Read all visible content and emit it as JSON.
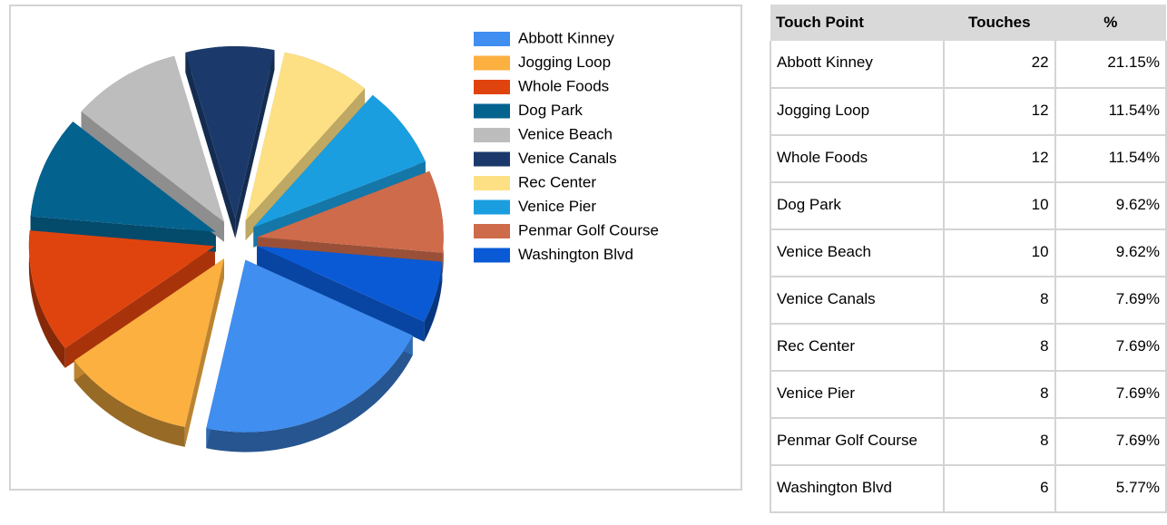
{
  "chart_data": {
    "type": "pie",
    "categories": [
      "Abbott Kinney",
      "Jogging Loop",
      "Whole Foods",
      "Dog Park",
      "Venice Beach",
      "Venice Canals",
      "Rec Center",
      "Venice Pier",
      "Penmar Golf Course",
      "Washington Blvd"
    ],
    "values": [
      22,
      12,
      12,
      10,
      10,
      8,
      8,
      8,
      8,
      6
    ],
    "colors": [
      "#3f8ef0",
      "#fbb040",
      "#e0440e",
      "#04628f",
      "#bdbdbd",
      "#1b3a6b",
      "#fde084",
      "#1a9ee0",
      "#cd6b4b",
      "#0a5ad6"
    ],
    "legend": "right"
  },
  "table": {
    "header": [
      "Touch Point",
      "Touches",
      "%"
    ],
    "rows": [
      [
        "Abbott Kinney",
        "22",
        "21.15%"
      ],
      [
        "Jogging Loop",
        "12",
        "11.54%"
      ],
      [
        "Whole Foods",
        "12",
        "11.54%"
      ],
      [
        "Dog Park",
        "10",
        "9.62%"
      ],
      [
        "Venice Beach",
        "10",
        "9.62%"
      ],
      [
        "Venice Canals",
        "8",
        "7.69%"
      ],
      [
        "Rec Center",
        "8",
        "7.69%"
      ],
      [
        "Venice Pier",
        "8",
        "7.69%"
      ],
      [
        "Penmar Golf Course",
        "8",
        "7.69%"
      ],
      [
        "Washington Blvd",
        "6",
        "5.77%"
      ]
    ]
  }
}
